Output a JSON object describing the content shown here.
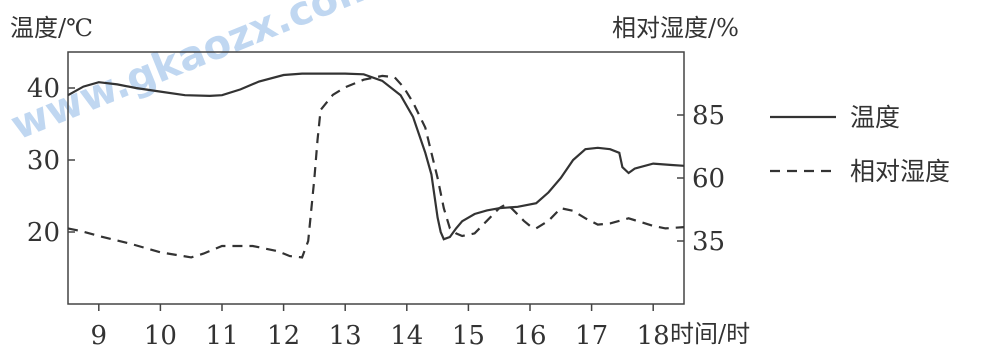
{
  "watermark": "www.gkaozx.com",
  "chart_data": {
    "type": "line",
    "title": "",
    "xlabel": "时间/时",
    "ylabel_left": "温度/℃",
    "ylabel_right": "相对湿度/%",
    "xlim": [
      8.5,
      18.5
    ],
    "ylim_left": [
      10,
      45
    ],
    "ylim_right": [
      10,
      110
    ],
    "x_ticks": [
      9,
      10,
      11,
      12,
      13,
      14,
      15,
      16,
      17,
      18
    ],
    "y_left_ticks": [
      20,
      30,
      40
    ],
    "y_right_ticks": [
      35,
      60,
      85
    ],
    "legend": {
      "placement": "right",
      "entries": [
        "温度",
        "相对湿度"
      ]
    },
    "grid": false,
    "series": [
      {
        "name": "温度",
        "axis": "left",
        "style": "solid",
        "x": [
          8.5,
          8.75,
          9,
          9.3,
          9.6,
          10,
          10.4,
          10.8,
          11,
          11.3,
          11.6,
          12,
          12.3,
          12.6,
          13,
          13.3,
          13.6,
          13.9,
          14.1,
          14.3,
          14.4,
          14.5,
          14.55,
          14.6,
          14.7,
          14.8,
          14.9,
          15.1,
          15.3,
          15.5,
          15.8,
          16.1,
          16.3,
          16.5,
          16.7,
          16.9,
          17.1,
          17.3,
          17.45,
          17.5,
          17.6,
          17.7,
          18,
          18.3,
          18.5
        ],
        "y": [
          39.0,
          40.2,
          40.8,
          40.5,
          40.0,
          39.5,
          39.0,
          38.9,
          39.0,
          39.8,
          40.9,
          41.8,
          42.0,
          42.0,
          42.0,
          41.9,
          41.0,
          39.0,
          36.0,
          31.0,
          28.0,
          22.0,
          20.0,
          19.0,
          19.3,
          20.5,
          21.5,
          22.5,
          23.0,
          23.3,
          23.5,
          24.0,
          25.5,
          27.5,
          30.0,
          31.5,
          31.7,
          31.5,
          31.0,
          29.0,
          28.2,
          28.8,
          29.5,
          29.3,
          29.2
        ]
      },
      {
        "name": "相对湿度",
        "axis": "right",
        "style": "dashed",
        "x": [
          8.5,
          8.7,
          9,
          9.5,
          10,
          10.5,
          10.7,
          11,
          11.5,
          11.9,
          12.1,
          12.3,
          12.4,
          12.5,
          12.55,
          12.6,
          12.7,
          12.8,
          13,
          13.3,
          13.6,
          13.8,
          13.95,
          14.1,
          14.3,
          14.4,
          14.5,
          14.6,
          14.7,
          14.8,
          14.9,
          15.1,
          15.3,
          15.5,
          15.6,
          15.7,
          15.8,
          15.9,
          16.0,
          16.1,
          16.3,
          16.5,
          16.7,
          16.9,
          17.1,
          17.3,
          17.6,
          17.8,
          18.0,
          18.2,
          18.5
        ],
        "y": [
          40.0,
          39.0,
          37.0,
          34.0,
          30.5,
          28.5,
          30.0,
          33.0,
          33.0,
          31.0,
          29.0,
          28.5,
          35.0,
          60.0,
          75.0,
          87.0,
          90.0,
          93.0,
          96.0,
          99.0,
          100.5,
          100.0,
          96.0,
          90.0,
          80.0,
          70.0,
          60.0,
          48.0,
          40.0,
          38.0,
          37.0,
          38.0,
          43.0,
          48.0,
          49.5,
          48.0,
          45.5,
          43.0,
          41.0,
          40.0,
          43.0,
          48.0,
          47.0,
          44.0,
          41.5,
          42.0,
          44.0,
          42.5,
          41.0,
          40.0,
          40.5
        ]
      }
    ]
  }
}
